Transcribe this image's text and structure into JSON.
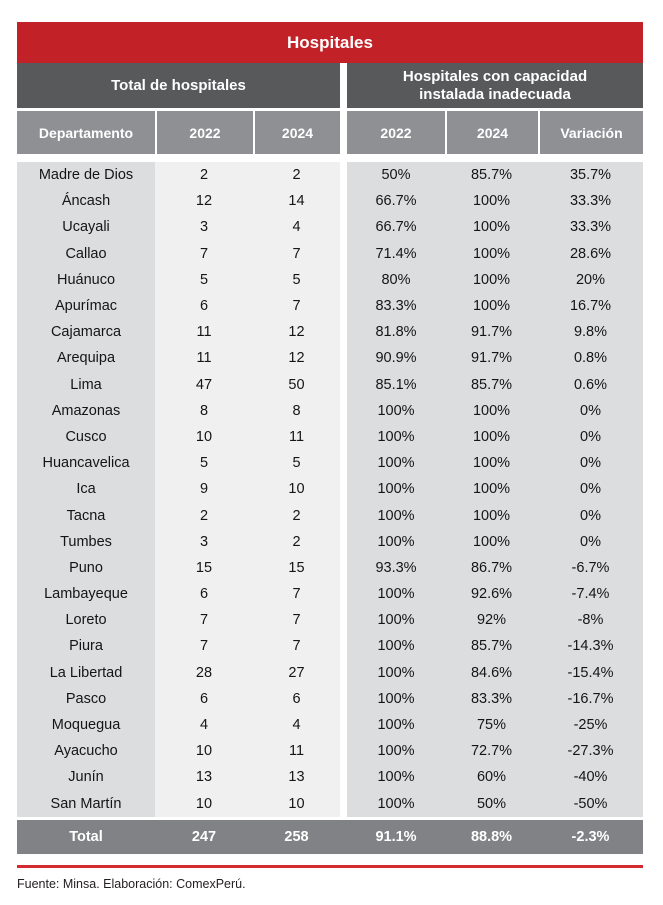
{
  "chart_data": {
    "type": "table",
    "title": "Hospitales",
    "column_groups": [
      {
        "label": "Total de hospitales",
        "span": 3
      },
      {
        "label": "Hospitales con capacidad instalada inadecuada",
        "span": 3
      }
    ],
    "columns": [
      "Departamento",
      "2022",
      "2024",
      "2022",
      "2024",
      "Variación"
    ],
    "rows": [
      [
        "Madre de Dios",
        "2",
        "2",
        "50%",
        "85.7%",
        "35.7%"
      ],
      [
        "Áncash",
        "12",
        "14",
        "66.7%",
        "100%",
        "33.3%"
      ],
      [
        "Ucayali",
        "3",
        "4",
        "66.7%",
        "100%",
        "33.3%"
      ],
      [
        "Callao",
        "7",
        "7",
        "71.4%",
        "100%",
        "28.6%"
      ],
      [
        "Huánuco",
        "5",
        "5",
        "80%",
        "100%",
        "20%"
      ],
      [
        "Apurímac",
        "6",
        "7",
        "83.3%",
        "100%",
        "16.7%"
      ],
      [
        "Cajamarca",
        "11",
        "12",
        "81.8%",
        "91.7%",
        "9.8%"
      ],
      [
        "Arequipa",
        "11",
        "12",
        "90.9%",
        "91.7%",
        "0.8%"
      ],
      [
        "Lima",
        "47",
        "50",
        "85.1%",
        "85.7%",
        "0.6%"
      ],
      [
        "Amazonas",
        "8",
        "8",
        "100%",
        "100%",
        "0%"
      ],
      [
        "Cusco",
        "10",
        "11",
        "100%",
        "100%",
        "0%"
      ],
      [
        "Huancavelica",
        "5",
        "5",
        "100%",
        "100%",
        "0%"
      ],
      [
        "Ica",
        "9",
        "10",
        "100%",
        "100%",
        "0%"
      ],
      [
        "Tacna",
        "2",
        "2",
        "100%",
        "100%",
        "0%"
      ],
      [
        "Tumbes",
        "3",
        "2",
        "100%",
        "100%",
        "0%"
      ],
      [
        "Puno",
        "15",
        "15",
        "93.3%",
        "86.7%",
        "-6.7%"
      ],
      [
        "Lambayeque",
        "6",
        "7",
        "100%",
        "92.6%",
        "-7.4%"
      ],
      [
        "Loreto",
        "7",
        "7",
        "100%",
        "92%",
        "-8%"
      ],
      [
        "Piura",
        "7",
        "7",
        "100%",
        "85.7%",
        "-14.3%"
      ],
      [
        "La Libertad",
        "28",
        "27",
        "100%",
        "84.6%",
        "-15.4%"
      ],
      [
        "Pasco",
        "6",
        "6",
        "100%",
        "83.3%",
        "-16.7%"
      ],
      [
        "Moquegua",
        "4",
        "4",
        "100%",
        "75%",
        "-25%"
      ],
      [
        "Ayacucho",
        "10",
        "11",
        "100%",
        "72.7%",
        "-27.3%"
      ],
      [
        "Junín",
        "13",
        "13",
        "100%",
        "60%",
        "-40%"
      ],
      [
        "San Martín",
        "10",
        "10",
        "100%",
        "50%",
        "-50%"
      ]
    ],
    "total_row": [
      "Total",
      "247",
      "258",
      "91.1%",
      "88.8%",
      "-2.3%"
    ],
    "source_note": "Fuente: Minsa. Elaboración: ComexPerú.",
    "layout_hints": {
      "grid": "off",
      "legend": "none"
    }
  },
  "colors": {
    "title_red": "#C22127",
    "underline_red": "#D32B30",
    "group_header_gray": "#58595B",
    "column_header_gray": "#8E9093",
    "total_row_gray": "#808285",
    "body_side_gray": "#DCDDDE",
    "body_center_gray": "#F0F0F1",
    "header_text": "#FFFFFF",
    "body_text": "#151515"
  }
}
